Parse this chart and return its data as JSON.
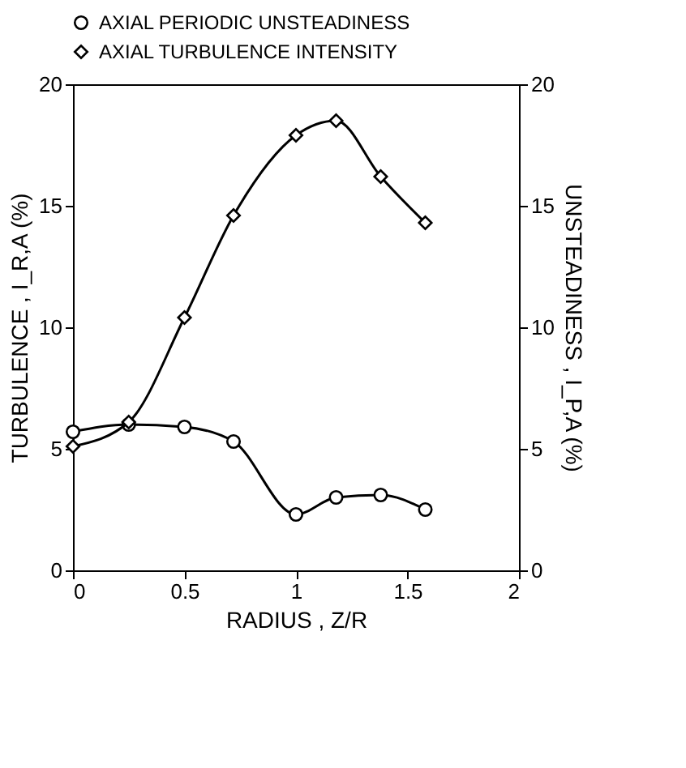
{
  "chart_data": {
    "type": "line",
    "xlabel": "RADIUS ,  Z/R",
    "ylabel": "TURBULENCE ,  I_R,A  (%)",
    "y2label": "UNSTEADINESS ,  I_P,A  (%)",
    "x": [
      0,
      0.25,
      0.5,
      0.72,
      1.0,
      1.18,
      1.38,
      1.58
    ],
    "series": [
      {
        "name": "AXIAL PERIODIC UNSTEADINESS",
        "color": "#000000",
        "marker": "circle",
        "axis": "y2",
        "values": [
          5.7,
          6.0,
          5.9,
          5.3,
          2.3,
          3.0,
          3.1,
          2.5
        ]
      },
      {
        "name": "AXIAL TURBULENCE INTENSITY",
        "color": "#000000",
        "marker": "diamond",
        "values": [
          5.1,
          6.1,
          10.4,
          14.6,
          17.9,
          18.5,
          16.2,
          14.3
        ]
      }
    ],
    "xlim": [
      0,
      2
    ],
    "xticks": [
      0,
      0.5,
      1,
      1.5,
      2
    ],
    "ylim": [
      0,
      20
    ],
    "yticks": [
      0,
      5,
      10,
      15,
      20
    ],
    "y2lim": [
      0,
      20
    ],
    "y2ticks": [
      0,
      5,
      10,
      15,
      20
    ],
    "legend": "top",
    "grid": false,
    "line_style": "solid"
  }
}
